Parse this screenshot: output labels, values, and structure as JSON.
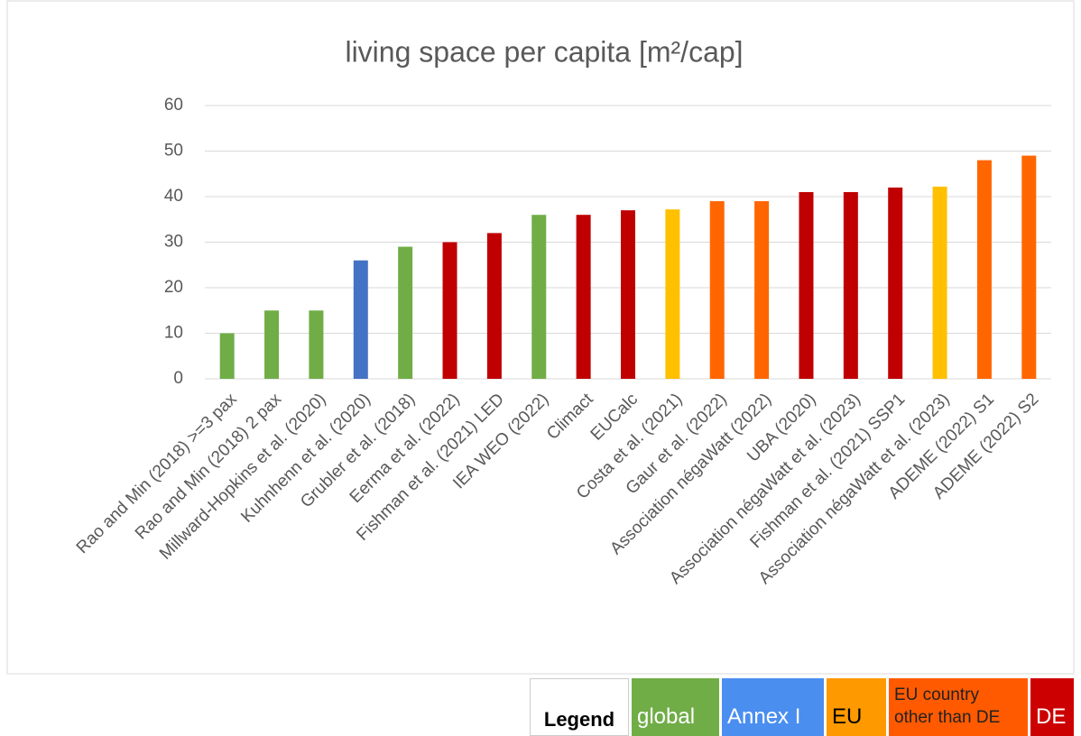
{
  "chart_data": {
    "type": "bar",
    "title": "living space per capita [m²/cap]",
    "categories": [
      "Rao and Min (2018) >=3 pax",
      "Rao and Min (2018) 2 pax",
      "Millward-Hopkins et al. (2020)",
      "Kuhnhenn et al. (2020)",
      "Grubler et al. (2018)",
      "Eerma et al. (2022)",
      "Fishman et al. (2021) LED",
      "IEA WEO (2022)",
      "Climact",
      "EUCalc",
      "Costa et al. (2021)",
      "Gaur et al. (2022)",
      "Association négaWatt (2022)",
      "UBA (2020)",
      "Association négaWatt et al. (2023)",
      "Fishman et al. (2021) SSP1",
      "Association négaWatt et al. (2023)",
      "ADEME (2022) S1",
      "ADEME (2022) S2"
    ],
    "values": [
      10,
      15,
      15,
      26,
      29,
      30,
      32,
      36,
      36,
      37,
      37.2,
      39,
      39,
      41,
      41,
      42,
      42.2,
      48,
      49
    ],
    "colors": [
      "#70ad47",
      "#70ad47",
      "#70ad47",
      "#4472c4",
      "#70ad47",
      "#c00000",
      "#c00000",
      "#70ad47",
      "#c00000",
      "#c00000",
      "#ffc000",
      "#ff6600",
      "#ff6600",
      "#c00000",
      "#c00000",
      "#c00000",
      "#ffc000",
      "#ff6600",
      "#ff6600"
    ],
    "ylim": [
      0,
      60
    ],
    "yticks": [
      0,
      10,
      20,
      30,
      40,
      50,
      60
    ],
    "grid": true,
    "legend": {
      "title": "Legend",
      "entries": [
        {
          "name": "global",
          "color": "#70ad47",
          "text_color": "#ffffff"
        },
        {
          "name": "Annex I",
          "color": "#4a8ef0",
          "text_color": "#ffffff"
        },
        {
          "name": "EU",
          "color": "#ff9900",
          "text_color": "#000000"
        },
        {
          "name": "EU country other than DE",
          "color": "#ff5a00",
          "text_color": "#222222"
        },
        {
          "name": "DE",
          "color": "#cc0000",
          "text_color": "#ffffff"
        }
      ]
    }
  }
}
